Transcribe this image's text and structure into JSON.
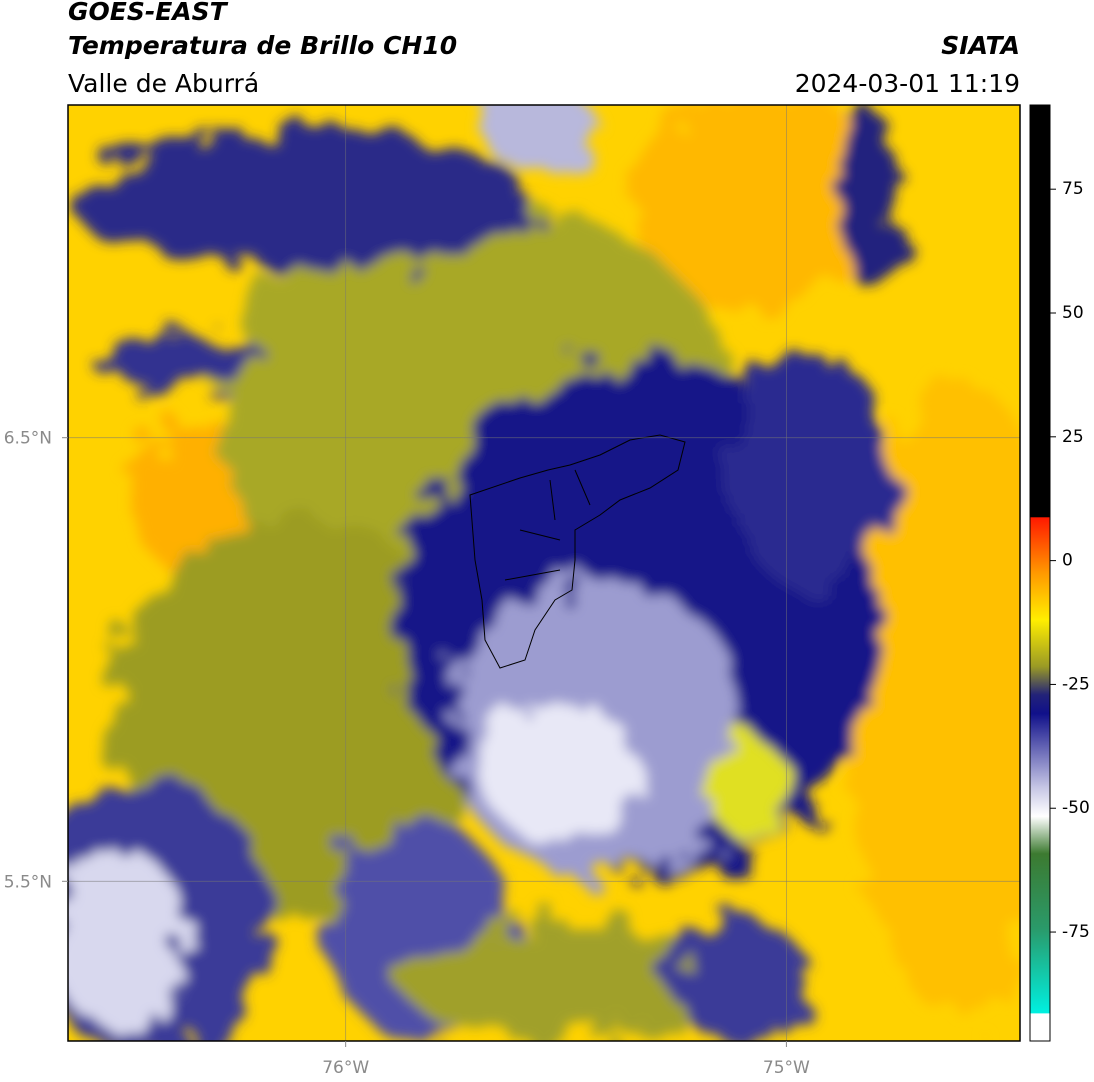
{
  "header": {
    "title": "GOES-EAST",
    "subtitle": "Temperatura de Brillo CH10",
    "region": "Valle de Aburrá",
    "source": "SIATA",
    "datetime": "2024-03-01 11:19"
  },
  "map": {
    "xlim": [
      -76.63,
      -74.47
    ],
    "ylim": [
      5.14,
      7.25
    ],
    "xticks": [
      {
        "value": -76,
        "label": "76°W"
      },
      {
        "value": -75,
        "label": "75°W"
      }
    ],
    "yticks": [
      {
        "value": 6.5,
        "label": "6.5°N"
      },
      {
        "value": 5.5,
        "label": "5.5°N"
      }
    ]
  },
  "colorbar": {
    "lim": [
      -97,
      92
    ],
    "ticks": [
      75,
      50,
      25,
      0,
      -25,
      -50,
      -75
    ]
  }
}
